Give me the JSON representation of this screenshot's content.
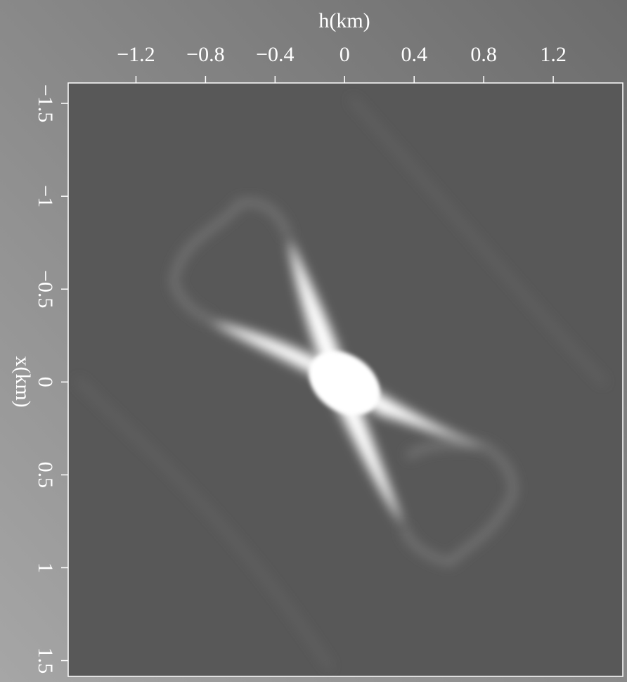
{
  "chart_data": {
    "type": "image",
    "xlabel": "h(km)",
    "ylabel": "x(km)",
    "xlim": [
      -1.59,
      1.6
    ],
    "ylim": [
      -1.61,
      1.585
    ],
    "xticks": [
      {
        "value": -1.2,
        "label": "−1.2"
      },
      {
        "value": -0.8,
        "label": "−0.8"
      },
      {
        "value": -0.4,
        "label": "−0.4"
      },
      0,
      0.4,
      0.8,
      1.2
    ],
    "yticks": [
      {
        "value": -1.5,
        "label": "−1.5"
      },
      {
        "value": -1,
        "label": "−1"
      },
      {
        "value": -0.5,
        "label": "−0.5"
      },
      0,
      0.5,
      1,
      1.5
    ]
  }
}
